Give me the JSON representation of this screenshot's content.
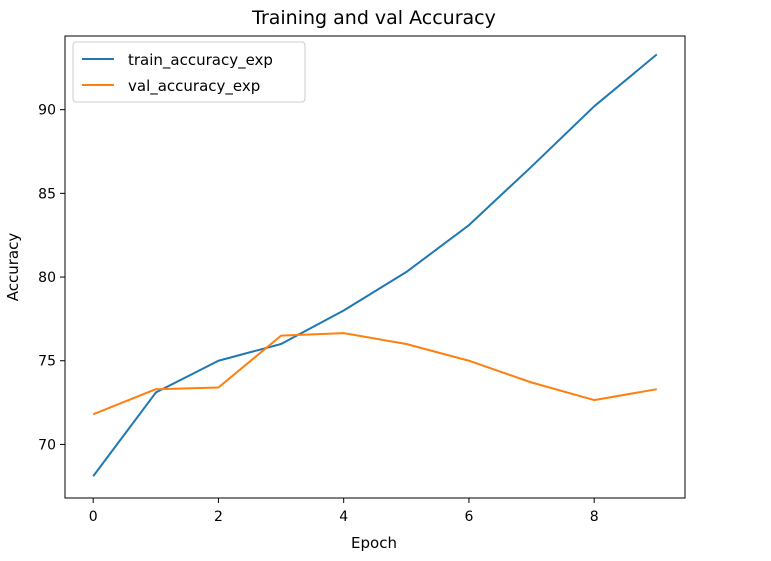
{
  "chart_data": {
    "type": "line",
    "title": "Training and val Accuracy",
    "xlabel": "Epoch",
    "ylabel": "Accuracy",
    "x": [
      0,
      1,
      2,
      3,
      4,
      5,
      6,
      7,
      8,
      9
    ],
    "xlim": [
      -0.45,
      9.45
    ],
    "ylim": [
      66.8,
      94.4
    ],
    "xticks": [
      0,
      2,
      4,
      6,
      8
    ],
    "yticks": [
      70,
      75,
      80,
      85,
      90
    ],
    "grid": false,
    "legend_position": "upper-left",
    "series": [
      {
        "name": "train_accuracy_exp",
        "color": "#1f77b4",
        "values": [
          68.1,
          73.1,
          75.0,
          76.0,
          78.0,
          80.3,
          83.1,
          86.6,
          90.2,
          93.3
        ]
      },
      {
        "name": "val_accuracy_exp",
        "color": "#ff7f0e",
        "values": [
          71.8,
          73.3,
          73.4,
          76.5,
          76.65,
          76.0,
          75.0,
          73.7,
          72.65,
          73.3
        ]
      }
    ]
  }
}
